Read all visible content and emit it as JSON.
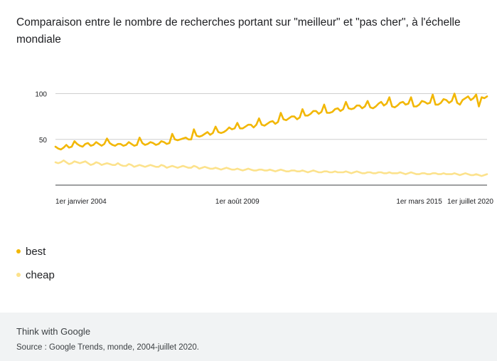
{
  "header": {
    "title": "Comparaison entre le nombre de recherches portant sur \"meilleur\" et \"pas cher\", à l'échelle mondiale"
  },
  "chart_data": {
    "type": "line",
    "title": "Comparaison entre le nombre de recherches portant sur \"meilleur\" et \"pas cher\", à l'échelle mondiale",
    "xlabel": "",
    "ylabel": "",
    "ylim": [
      0,
      100
    ],
    "yticks": [
      50,
      100
    ],
    "x_tick_labels": [
      "1er janvier 2004",
      "1er août 2009",
      "1er mars 2015",
      "1er juillet 2020"
    ],
    "x_range": [
      "2004-01",
      "2020-07"
    ],
    "grid": true,
    "legend_position": "bottom-left",
    "series": [
      {
        "name": "best",
        "color": "#f2b705",
        "values": [
          42,
          40,
          39,
          41,
          44,
          41,
          42,
          48,
          45,
          43,
          42,
          45,
          46,
          43,
          44,
          47,
          45,
          43,
          45,
          51,
          46,
          44,
          43,
          45,
          45,
          43,
          44,
          47,
          45,
          43,
          44,
          52,
          46,
          44,
          45,
          47,
          46,
          44,
          45,
          48,
          47,
          45,
          46,
          56,
          50,
          49,
          50,
          51,
          52,
          50,
          50,
          61,
          54,
          53,
          54,
          56,
          58,
          55,
          57,
          64,
          58,
          57,
          58,
          60,
          63,
          61,
          62,
          68,
          62,
          62,
          64,
          66,
          66,
          63,
          66,
          73,
          66,
          65,
          67,
          69,
          70,
          67,
          69,
          79,
          72,
          71,
          73,
          75,
          75,
          72,
          74,
          83,
          76,
          76,
          78,
          81,
          81,
          78,
          80,
          88,
          79,
          79,
          80,
          83,
          84,
          81,
          83,
          91,
          84,
          83,
          84,
          87,
          87,
          84,
          86,
          92,
          85,
          84,
          86,
          89,
          91,
          87,
          89,
          96,
          86,
          85,
          87,
          90,
          91,
          88,
          89,
          96,
          86,
          86,
          88,
          92,
          91,
          89,
          90,
          99,
          88,
          88,
          90,
          94,
          93,
          90,
          92,
          100,
          90,
          88,
          93,
          95,
          97,
          93,
          95,
          99,
          86,
          96,
          95,
          97
        ]
      },
      {
        "name": "cheap",
        "color": "#fce28c",
        "values": [
          25,
          24,
          25,
          27,
          25,
          23,
          24,
          26,
          25,
          24,
          25,
          26,
          24,
          22,
          23,
          25,
          24,
          22,
          23,
          24,
          23,
          22,
          22,
          24,
          22,
          21,
          21,
          23,
          22,
          20,
          21,
          22,
          21,
          20,
          21,
          22,
          21,
          20,
          20,
          22,
          21,
          19,
          20,
          21,
          20,
          19,
          20,
          21,
          20,
          19,
          19,
          21,
          20,
          18,
          19,
          20,
          19,
          18,
          18,
          19,
          18,
          17,
          18,
          19,
          18,
          17,
          17,
          18,
          17,
          16,
          17,
          18,
          17,
          16,
          16,
          17,
          17,
          16,
          16,
          17,
          16,
          15,
          16,
          17,
          16,
          15,
          15,
          16,
          16,
          15,
          15,
          16,
          15,
          14,
          15,
          16,
          15,
          14,
          14,
          15,
          15,
          14,
          14,
          15,
          14,
          14,
          14,
          15,
          14,
          13,
          14,
          15,
          14,
          13,
          13,
          14,
          14,
          13,
          13,
          14,
          14,
          13,
          13,
          14,
          13,
          13,
          13,
          14,
          13,
          12,
          13,
          14,
          13,
          12,
          12,
          13,
          13,
          12,
          12,
          13,
          13,
          12,
          12,
          13,
          12,
          12,
          12,
          13,
          12,
          11,
          12,
          13,
          12,
          11,
          11,
          12,
          11,
          10,
          11,
          12
        ]
      }
    ]
  },
  "legend": {
    "items": [
      {
        "label": "best",
        "color": "#f2b705"
      },
      {
        "label": "cheap",
        "color": "#fce28c"
      }
    ]
  },
  "footer": {
    "brand": "Think with Google",
    "source": "Source : Google Trends, monde, 2004-juillet 2020."
  }
}
